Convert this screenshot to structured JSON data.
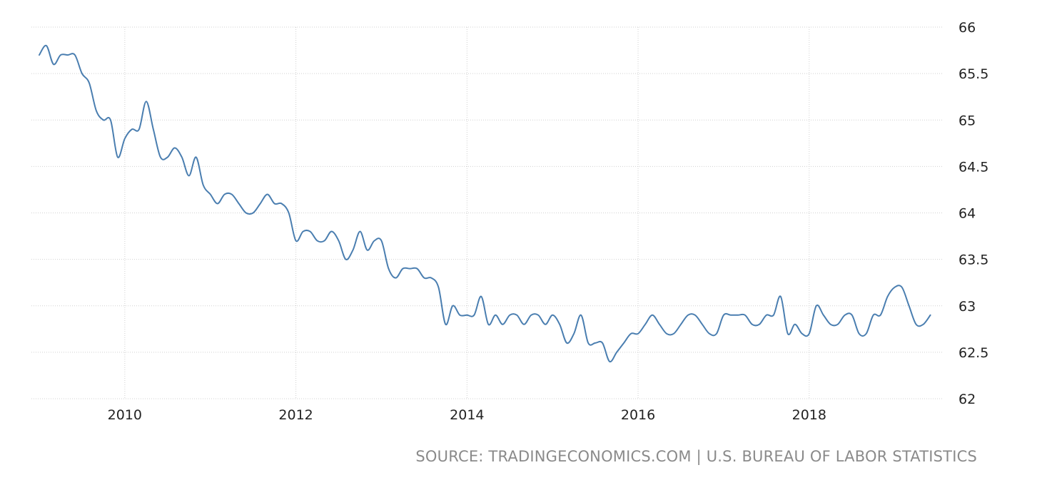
{
  "chart_data": {
    "type": "line",
    "title": "",
    "xlabel": "",
    "ylabel": "",
    "xlim": [
      2009.0,
      2019.42
    ],
    "ylim": [
      62,
      66
    ],
    "y_axis_position": "right",
    "grid": true,
    "x_ticks": [
      {
        "value": 2010,
        "label": "2010"
      },
      {
        "value": 2012,
        "label": "2012"
      },
      {
        "value": 2014,
        "label": "2014"
      },
      {
        "value": 2016,
        "label": "2016"
      },
      {
        "value": 2018,
        "label": "2018"
      }
    ],
    "y_ticks": [
      {
        "value": 62,
        "label": "62"
      },
      {
        "value": 62.5,
        "label": "62.5"
      },
      {
        "value": 63,
        "label": "63"
      },
      {
        "value": 63.5,
        "label": "63.5"
      },
      {
        "value": 64,
        "label": "64"
      },
      {
        "value": 64.5,
        "label": "64.5"
      },
      {
        "value": 65,
        "label": "65"
      },
      {
        "value": 65.5,
        "label": "65.5"
      },
      {
        "value": 66,
        "label": "66"
      }
    ],
    "series": [
      {
        "color": "#4a7eb0",
        "start": "2009-01",
        "frequency": "monthly",
        "values": [
          65.7,
          65.8,
          65.6,
          65.7,
          65.7,
          65.7,
          65.5,
          65.4,
          65.1,
          65.0,
          65.0,
          64.6,
          64.8,
          64.9,
          64.9,
          65.2,
          64.9,
          64.6,
          64.6,
          64.7,
          64.6,
          64.4,
          64.6,
          64.3,
          64.2,
          64.1,
          64.2,
          64.2,
          64.1,
          64.0,
          64.0,
          64.1,
          64.2,
          64.1,
          64.1,
          64.0,
          63.7,
          63.8,
          63.8,
          63.7,
          63.7,
          63.8,
          63.7,
          63.5,
          63.6,
          63.8,
          63.6,
          63.7,
          63.7,
          63.4,
          63.3,
          63.4,
          63.4,
          63.4,
          63.3,
          63.3,
          63.2,
          62.8,
          63.0,
          62.9,
          62.9,
          62.9,
          63.1,
          62.8,
          62.9,
          62.8,
          62.9,
          62.9,
          62.8,
          62.9,
          62.9,
          62.8,
          62.9,
          62.8,
          62.6,
          62.7,
          62.9,
          62.6,
          62.6,
          62.6,
          62.4,
          62.5,
          62.6,
          62.7,
          62.7,
          62.8,
          62.9,
          62.8,
          62.7,
          62.7,
          62.8,
          62.9,
          62.9,
          62.8,
          62.7,
          62.7,
          62.9,
          62.9,
          62.9,
          62.9,
          62.8,
          62.8,
          62.9,
          62.9,
          63.1,
          62.7,
          62.8,
          62.7,
          62.7,
          63.0,
          62.9,
          62.8,
          62.8,
          62.9,
          62.9,
          62.7,
          62.7,
          62.9,
          62.9,
          63.1,
          63.2,
          63.2,
          63.0,
          62.8,
          62.8,
          62.9
        ]
      }
    ]
  },
  "source_text": "SOURCE: TRADINGECONOMICS.COM | U.S. BUREAU OF LABOR STATISTICS",
  "colors": {
    "line": "#4a7eb0",
    "grid": "#d0d0d0",
    "tick_text": "#222222",
    "source_text": "#8a8a8a"
  }
}
